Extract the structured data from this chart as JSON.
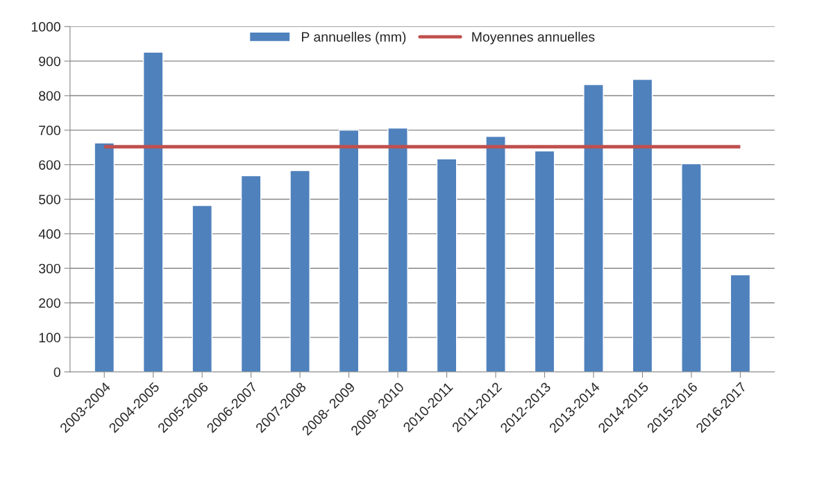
{
  "chart_data": {
    "type": "bar",
    "categories": [
      "2003-2004",
      "2004-2005",
      "2005-2006",
      "2006-2007",
      "2007-2008",
      "2008- 2009",
      "2009- 2010",
      "2010-2011",
      "2011-2012",
      "2012-2013",
      "2013-2014",
      "2014-2015",
      "2015-2016",
      "2016-2017"
    ],
    "series": [
      {
        "name": "P annuelles (mm)",
        "color": "#4f81bd",
        "values": [
          663,
          926,
          482,
          568,
          583,
          700,
          706,
          617,
          682,
          640,
          832,
          847,
          603,
          281
        ]
      },
      {
        "name": "Moyennes annuelles",
        "type": "line",
        "color": "#c0504d",
        "values": [
          652,
          652,
          652,
          652,
          652,
          652,
          652,
          652,
          652,
          652,
          652,
          652,
          652,
          652
        ]
      }
    ],
    "ylim": [
      0,
      1000
    ],
    "yticks": [
      0,
      100,
      200,
      300,
      400,
      500,
      600,
      700,
      800,
      900,
      1000
    ],
    "grid": "y",
    "legend": "top"
  }
}
